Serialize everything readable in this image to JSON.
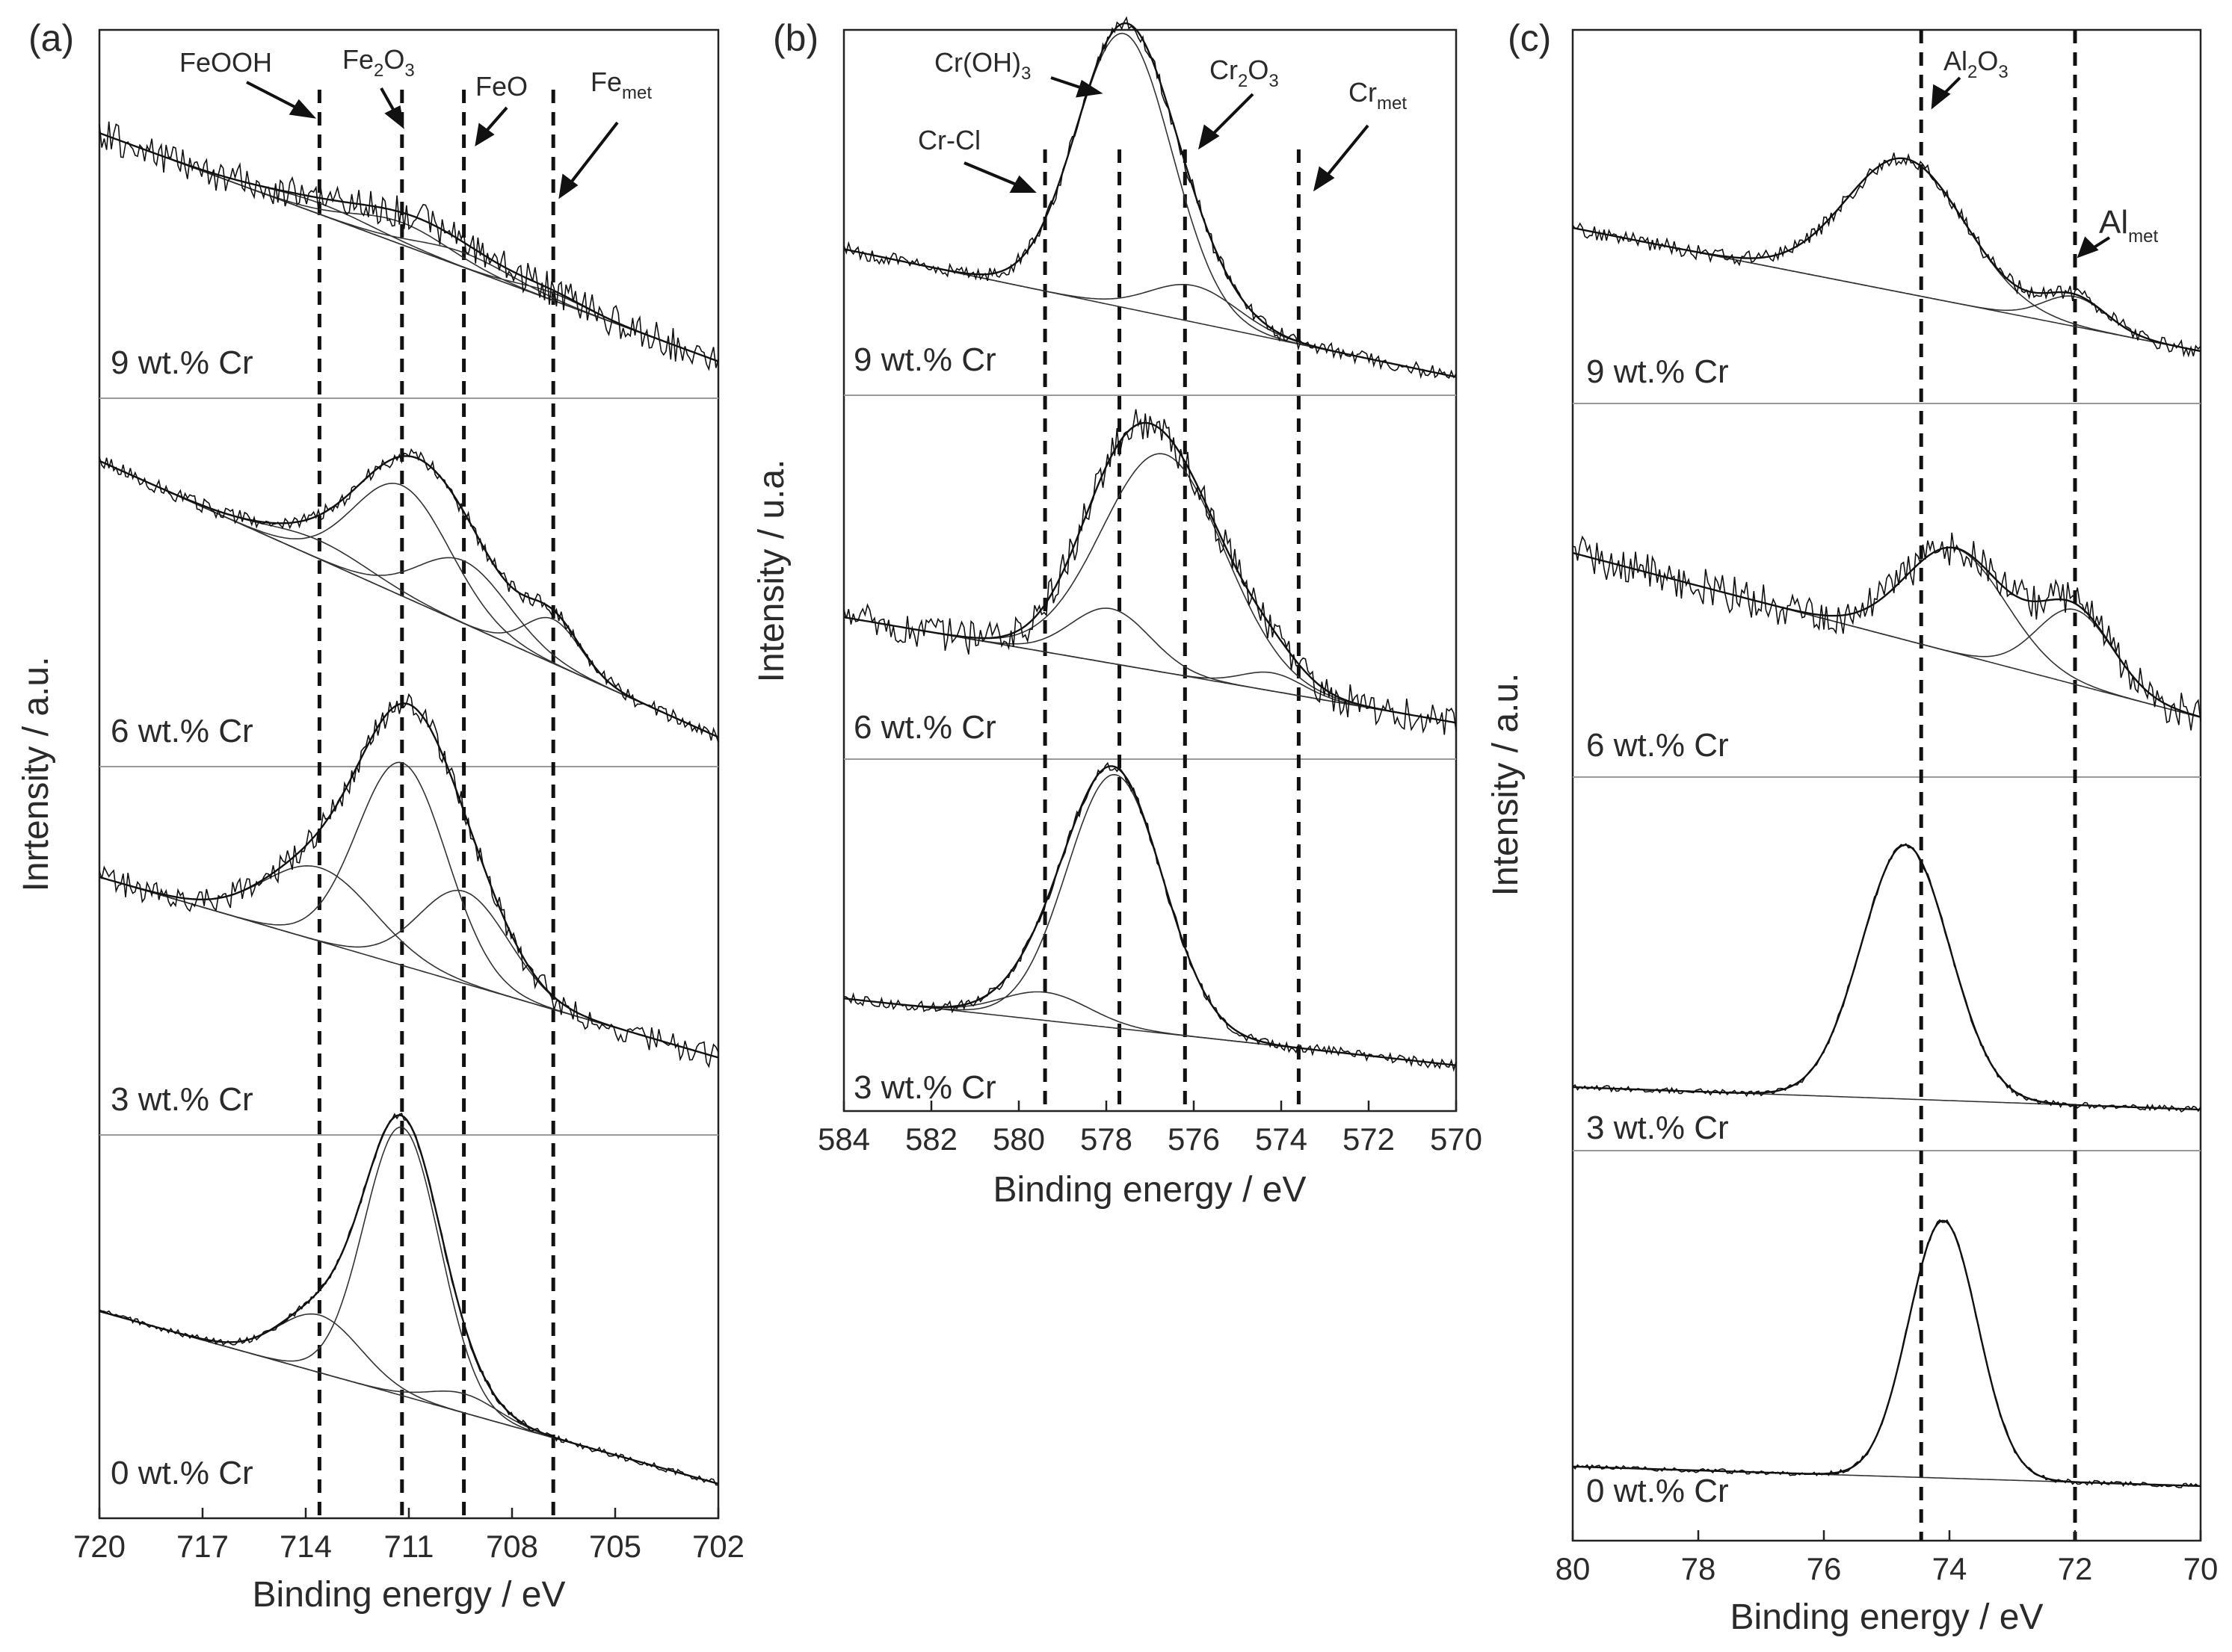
{
  "figure": {
    "ylabel_left": "Inrtensity / a.u.",
    "ylabel_middle": "Intensity / u.a.",
    "ylabel_right": "Intensity / a.u."
  },
  "chart_data": [
    {
      "type": "line",
      "panel": "(a)",
      "title": "",
      "xlabel": "Binding energy / eV",
      "ylabel": "Inrtensity / a.u.",
      "xlim": [
        720,
        702
      ],
      "xticks": [
        720,
        717,
        714,
        711,
        708,
        705,
        702
      ],
      "stacked_samples": [
        "9 wt.% Cr",
        "6 wt.% Cr",
        "3 wt.% Cr",
        "0 wt.% Cr"
      ],
      "reference_lines": [
        {
          "name": "FeOOH",
          "x": 713.6
        },
        {
          "name": "Fe2O3",
          "x": 711.2
        },
        {
          "name": "FeO",
          "x": 709.4
        },
        {
          "name": "Femet",
          "x": 706.8
        }
      ],
      "annotations": [
        {
          "text": "FeOOH"
        },
        {
          "text": "Fe",
          "sub1": "2",
          "mid": "O",
          "sub2": "3"
        },
        {
          "text": "FeO"
        },
        {
          "text": "Fe",
          "sub1": "met"
        }
      ],
      "spectra": [
        {
          "label": "9 wt.% Cr",
          "baseline_left": 0.28,
          "baseline_right": 0.9,
          "noise": 0.045,
          "peaks": [
            {
              "center": 713.6,
              "height": 0.03,
              "width": 1.6
            },
            {
              "center": 711.2,
              "height": 0.06,
              "width": 1.4
            },
            {
              "center": 709.4,
              "height": 0.04,
              "width": 1.4
            },
            {
              "center": 706.8,
              "height": 0.02,
              "width": 1.0
            }
          ]
        },
        {
          "label": "6 wt.% Cr",
          "baseline_left": 0.17,
          "baseline_right": 0.92,
          "noise": 0.02,
          "peaks": [
            {
              "center": 713.6,
              "height": 0.05,
              "width": 1.5
            },
            {
              "center": 711.2,
              "height": 0.3,
              "width": 1.4
            },
            {
              "center": 709.4,
              "height": 0.17,
              "width": 1.3
            },
            {
              "center": 706.8,
              "height": 0.12,
              "width": 0.8
            }
          ]
        },
        {
          "label": "3 wt.% Cr",
          "baseline_left": 0.3,
          "baseline_right": 0.79,
          "noise": 0.035,
          "peaks": [
            {
              "center": 713.6,
              "height": 0.2,
              "width": 1.6
            },
            {
              "center": 711.2,
              "height": 0.55,
              "width": 1.3
            },
            {
              "center": 709.4,
              "height": 0.25,
              "width": 1.3
            }
          ]
        },
        {
          "label": "0 wt.% Cr",
          "baseline_left": 0.46,
          "baseline_right": 0.91,
          "noise": 0.008,
          "peaks": [
            {
              "center": 713.6,
              "height": 0.15,
              "width": 1.2
            },
            {
              "center": 711.2,
              "height": 0.7,
              "width": 1.1
            },
            {
              "center": 709.4,
              "height": 0.05,
              "width": 1.0
            }
          ]
        }
      ]
    },
    {
      "type": "line",
      "panel": "(b)",
      "title": "",
      "xlabel": "Binding energy / eV",
      "ylabel": "Intensity / u.a.",
      "xlim": [
        584,
        570
      ],
      "xticks": [
        584,
        582,
        580,
        578,
        576,
        574,
        572,
        570
      ],
      "stacked_samples": [
        "9 wt.% Cr",
        "6 wt.% Cr",
        "3 wt.% Cr"
      ],
      "reference_lines": [
        {
          "name": "Cr-Cl",
          "x": 579.4
        },
        {
          "name": "Cr(OH)3",
          "x": 577.7
        },
        {
          "name": "Cr2O3",
          "x": 576.2
        },
        {
          "name": "Crmet",
          "x": 573.6
        }
      ],
      "annotations": [
        {
          "text": "Cr-Cl"
        },
        {
          "text": "Cr(OH)",
          "sub1": "3"
        },
        {
          "text": "Cr",
          "sub1": "2",
          "mid": "O",
          "sub2": "3"
        },
        {
          "text": "Cr",
          "sub1": "met"
        }
      ],
      "spectra": [
        {
          "label": "9 wt.% Cr",
          "baseline_left": 0.6,
          "baseline_right": 0.95,
          "noise": 0.02,
          "peaks": [
            {
              "center": 577.6,
              "height": 0.75,
              "width": 1.1
            },
            {
              "center": 576.0,
              "height": 0.1,
              "width": 1.0
            }
          ]
        },
        {
          "label": "6 wt.% Cr",
          "baseline_left": 0.61,
          "baseline_right": 0.9,
          "noise": 0.05,
          "peaks": [
            {
              "center": 577.9,
              "height": 0.15,
              "width": 0.9
            },
            {
              "center": 576.7,
              "height": 0.6,
              "width": 1.4
            },
            {
              "center": 574.2,
              "height": 0.05,
              "width": 0.7
            }
          ]
        },
        {
          "label": "3 wt.% Cr",
          "baseline_left": 0.68,
          "baseline_right": 0.87,
          "noise": 0.015,
          "peaks": [
            {
              "center": 579.4,
              "height": 0.08,
              "width": 1.0
            },
            {
              "center": 577.8,
              "height": 0.72,
              "width": 1.1
            }
          ]
        }
      ]
    },
    {
      "type": "line",
      "panel": "(c)",
      "title": "",
      "xlabel": "Binding energy / eV",
      "ylabel": "Intensity / a.u.",
      "xlim": [
        80,
        70
      ],
      "xticks": [
        80,
        78,
        76,
        74,
        72,
        70
      ],
      "stacked_samples": [
        "9 wt.% Cr",
        "6 wt.% Cr",
        "3 wt.% Cr",
        "0 wt.% Cr"
      ],
      "reference_lines": [
        {
          "name": "Al2O3",
          "x": 74.45
        },
        {
          "name": "Almet",
          "x": 72.0
        }
      ],
      "annotations": [
        {
          "text": "Al",
          "sub1": "2",
          "mid": "O",
          "sub2": "3"
        },
        {
          "text": "Al",
          "sub1": "met"
        }
      ],
      "spectra": [
        {
          "label": "9 wt.% Cr",
          "baseline_left": 0.53,
          "baseline_right": 0.86,
          "noise": 0.02,
          "peaks": [
            {
              "center": 74.7,
              "height": 0.36,
              "width": 0.95
            },
            {
              "center": 72.0,
              "height": 0.08,
              "width": 0.5
            }
          ]
        },
        {
          "label": "6 wt.% Cr",
          "baseline_left": 0.4,
          "baseline_right": 0.84,
          "noise": 0.05,
          "peaks": [
            {
              "center": 73.9,
              "height": 0.28,
              "width": 0.8
            },
            {
              "center": 72.0,
              "height": 0.2,
              "width": 0.6
            }
          ]
        },
        {
          "label": "3 wt.% Cr",
          "baseline_left": 0.83,
          "baseline_right": 0.89,
          "noise": 0.008,
          "peaks": [
            {
              "center": 74.7,
              "height": 0.68,
              "width": 0.7
            }
          ]
        },
        {
          "label": "0 wt.% Cr",
          "baseline_left": 0.81,
          "baseline_right": 0.86,
          "noise": 0.006,
          "peaks": [
            {
              "center": 74.1,
              "height": 0.66,
              "width": 0.55
            }
          ]
        }
      ]
    }
  ]
}
